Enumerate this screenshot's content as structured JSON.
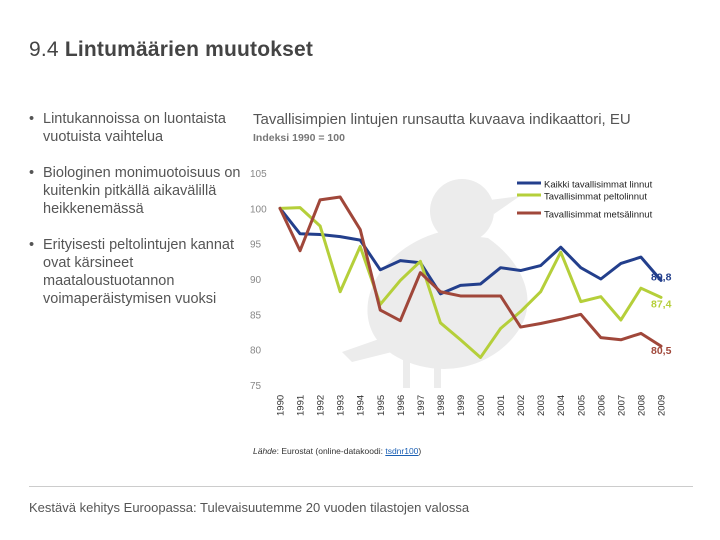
{
  "slide": {
    "number": "9.4",
    "title": "Lintumäärien muutokset"
  },
  "bullets": [
    "Lintukannoissa on luontaista vuotuista vaihtelua",
    "Biologinen monimuotoisuus on kuitenkin pitkällä aikavälillä heikkenemässä",
    "Erityisesti peltolintujen kannat ovat kärsineet maataloustuotannon voimaperäistymisen vuoksi"
  ],
  "source": {
    "label": "Lähde",
    "text": ": Eurostat (online-datakoodi: ",
    "code": "tsdnr100",
    "close": ")"
  },
  "footer": "Kestävä kehitys Euroopassa: Tulevaisuutemme 20 vuoden tilastojen valossa",
  "chart_data": {
    "type": "line",
    "title": "Tavallisimpien lintujen runsautta kuvaava indikaattori, EU",
    "subtitle": "Indeksi 1990 = 100",
    "xlabel": "",
    "ylabel": "",
    "ylim": [
      75,
      105
    ],
    "yticks": [
      "105",
      "100",
      "95",
      "90",
      "85",
      "80",
      "75"
    ],
    "x": [
      "1990",
      "1991",
      "1992",
      "1993",
      "1994",
      "1995",
      "1996",
      "1997",
      "1998",
      "1999",
      "2000",
      "2001",
      "2002",
      "2003",
      "2004",
      "2005",
      "2006",
      "2007",
      "2008",
      "2009"
    ],
    "legend_position": "top-right",
    "series": [
      {
        "name": "Kaikki tavallisimmat linnut",
        "color": "#233f8c",
        "end_label": "89,8",
        "values": [
          100,
          96.4,
          96.3,
          96.0,
          95.5,
          91.3,
          92.6,
          92.3,
          87.9,
          89.1,
          89.3,
          91.6,
          91.2,
          91.9,
          94.5,
          91.6,
          90.0,
          92.2,
          93.1,
          89.8
        ]
      },
      {
        "name": "Tavallisimmat peltolinnut",
        "color": "#b5cf3a",
        "end_label": "87,4",
        "values": [
          100,
          100.1,
          97.5,
          88.2,
          94.6,
          86.4,
          89.8,
          92.5,
          83.8,
          81.4,
          78.9,
          83.0,
          85.4,
          88.2,
          93.8,
          86.8,
          87.5,
          84.2,
          88.7,
          87.4
        ]
      },
      {
        "name": "Tavallisimmat metsälinnut",
        "color": "#a0473a",
        "end_label": "80,5",
        "values": [
          100,
          94.0,
          101.2,
          101.6,
          97.0,
          85.6,
          84.1,
          90.9,
          88.2,
          87.6,
          87.6,
          87.6,
          83.2,
          83.7,
          84.3,
          85.0,
          81.7,
          81.4,
          82.3,
          80.5
        ]
      }
    ]
  }
}
